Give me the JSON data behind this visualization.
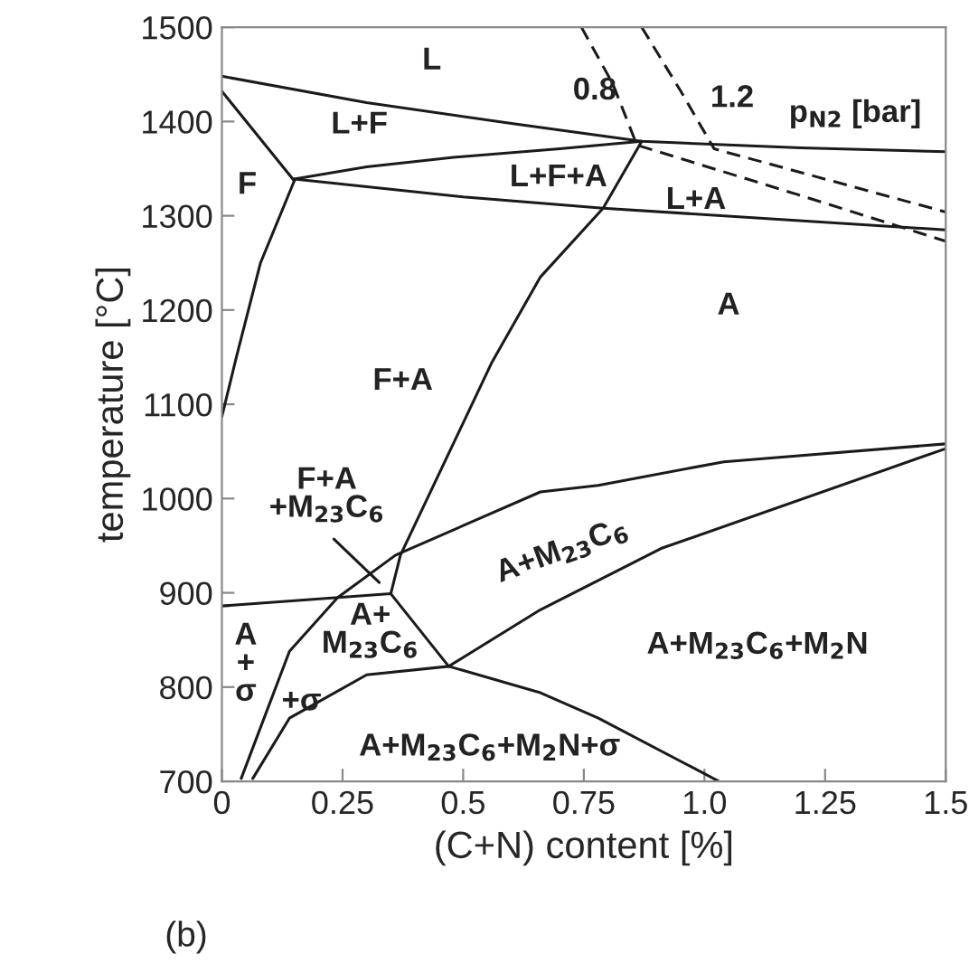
{
  "chart_data": {
    "type": "line",
    "xlabel": "(C+N) content [%]",
    "ylabel": "temperature [°C]",
    "xlim": [
      0,
      1.5
    ],
    "ylim": [
      700,
      1500
    ],
    "xticks": [
      0,
      0.25,
      0.5,
      0.75,
      {
        "value": 1.0,
        "label": "1.0"
      },
      1.25,
      1.5
    ],
    "yticks": [
      700,
      800,
      900,
      1000,
      1100,
      1200,
      1300,
      1400,
      1500
    ],
    "grid": false,
    "legend": false,
    "marker": "none",
    "series": [
      {
        "color": "#1a1a1a",
        "line_style": "solid",
        "x": [
          0,
          0.3,
          0.6,
          0.87,
          1.2,
          1.5
        ],
        "values": [
          1448,
          1420,
          1398,
          1379,
          1372,
          1368
        ]
      },
      {
        "color": "#1a1a1a",
        "line_style": "solid",
        "x": [
          0.15,
          0.3,
          0.48,
          0.7,
          0.87
        ],
        "values": [
          1339,
          1352,
          1362,
          1371,
          1379
        ]
      },
      {
        "color": "#1a1a1a",
        "line_style": "solid",
        "x": [
          0.15,
          0.5,
          0.79,
          1.5
        ],
        "values": [
          1339,
          1320,
          1308,
          1285
        ]
      },
      {
        "color": "#1a1a1a",
        "line_style": "solid",
        "x": [
          0,
          0.15
        ],
        "values": [
          1432,
          1337
        ]
      },
      {
        "color": "#1a1a1a",
        "line_style": "solid",
        "x": [
          0.15,
          0.08,
          0.03,
          0
        ],
        "values": [
          1337,
          1250,
          1150,
          1087
        ]
      },
      {
        "color": "#1a1a1a",
        "line_style": "solid",
        "x": [
          0.87,
          0.79,
          0.66,
          0.56,
          0.37,
          0.35
        ],
        "values": [
          1379,
          1308,
          1235,
          1145,
          940,
          899
        ]
      },
      {
        "color": "#1a1a1a",
        "line_style": "solid",
        "x": [
          0.04,
          0.14,
          0.24,
          0.36,
          0.66,
          0.78,
          1.04,
          1.5
        ],
        "values": [
          703,
          838,
          895,
          940,
          1007,
          1014,
          1039,
          1058
        ]
      },
      {
        "color": "#1a1a1a",
        "line_style": "solid",
        "x": [
          0,
          0.35
        ],
        "values": [
          886,
          899
        ]
      },
      {
        "color": "#1a1a1a",
        "line_style": "solid",
        "x": [
          0.35,
          0.47
        ],
        "values": [
          899,
          822
        ]
      },
      {
        "color": "#1a1a1a",
        "line_style": "solid",
        "x": [
          0.064,
          0.14,
          0.3,
          0.47,
          0.66,
          0.91,
          1.5
        ],
        "values": [
          703,
          767,
          813,
          822,
          882,
          947,
          1053
        ]
      },
      {
        "color": "#1a1a1a",
        "line_style": "solid",
        "x": [
          0.47,
          0.66,
          0.78,
          1.03
        ],
        "values": [
          822,
          794,
          767,
          700
        ]
      },
      {
        "color": "#1a1a1a",
        "line_style": "solid",
        "x": [
          0.232,
          0.326
        ],
        "values": [
          957,
          911
        ]
      },
      {
        "color": "#1a1a1a",
        "line_style": "dashed",
        "x": [
          0.745,
          0.81,
          0.86,
          1.19,
          1.5
        ],
        "values": [
          1500,
          1440,
          1375,
          1323,
          1273
        ]
      },
      {
        "color": "#1a1a1a",
        "line_style": "dashed",
        "x": [
          0.87,
          0.95,
          1.02,
          1.5
        ],
        "values": [
          1500,
          1433,
          1371,
          1304
        ]
      }
    ],
    "annotations": [
      "L",
      "L+F",
      "F",
      "L+F+A",
      "L+A",
      "A",
      "F+A",
      "p$_{N2}$ [bar]",
      "0.8",
      "1.2",
      "F+A\n+M$_{23}$C$_{6}$",
      "A+M$_{23}$C$_{6}$",
      "A+\nM$_{23}$C$_{6}$",
      "+σ",
      "A\n+\nσ",
      "A+M$_{23}$C$_{6}$+M$_{2}$N",
      "A+M$_{23}$C$_{6}$+M$_{2}$N+σ",
      "(b)"
    ]
  }
}
